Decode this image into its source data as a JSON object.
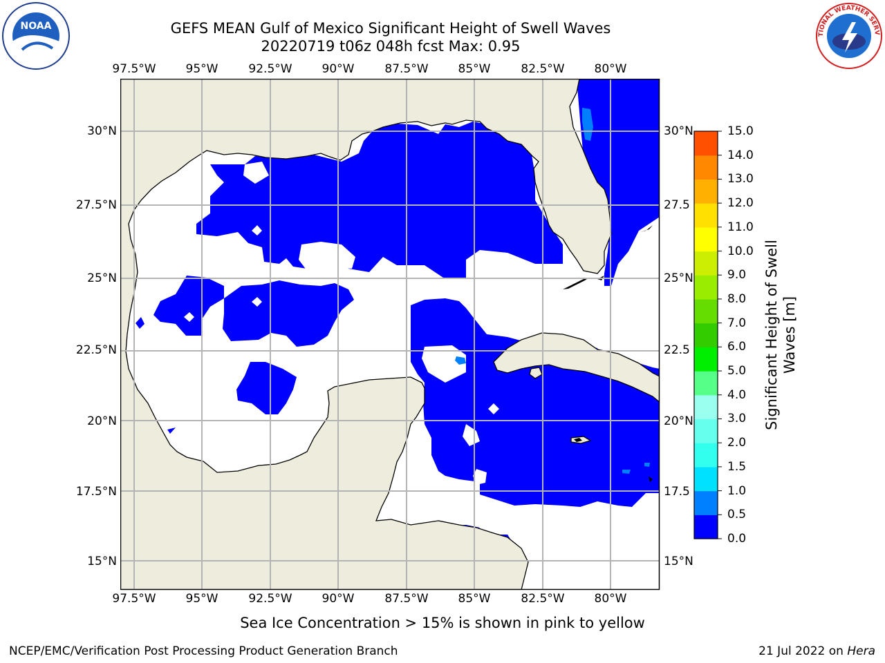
{
  "title": {
    "line1": "GEFS MEAN Gulf of Mexico Significant Height of Swell Waves",
    "line2": "20220719 t06z 048h fcst   Max: 0.95"
  },
  "logos": {
    "left": {
      "icon": "noaa-logo",
      "text": "NOAA"
    },
    "right": {
      "icon": "nws-logo",
      "text": "NATIONAL WEATHER SERVICE"
    }
  },
  "map": {
    "x_ticks": [
      "97.5°W",
      "95°W",
      "92.5°W",
      "90°W",
      "87.5°W",
      "85°W",
      "82.5°W",
      "80°W"
    ],
    "y_ticks_left": [
      "30°N",
      "27.5°N",
      "25°N",
      "22.5°N",
      "20°N",
      "17.5°N",
      "15°N"
    ],
    "y_ticks_right": [
      "30°N",
      "27.5",
      "25°N",
      "22.5",
      "20°N",
      "17.5",
      "15°N"
    ],
    "lon_range": [
      -98,
      -78.2
    ],
    "lat_range": [
      14.0,
      31.8
    ],
    "colors": {
      "land": "#eeecdc",
      "ocean_low": "#0000ff",
      "ocean_mid": "#0080ff",
      "grid": "#b4b4b4"
    }
  },
  "colorbar": {
    "ticks": [
      "15.0",
      "14.0",
      "13.0",
      "12.0",
      "11.0",
      "10.0",
      "9.0",
      "8.0",
      "7.0",
      "6.0",
      "5.0",
      "4.0",
      "3.0",
      "2.0",
      "1.5",
      "1.0",
      "0.5",
      "0.0"
    ],
    "colors": [
      "#0000ff",
      "#0080ff",
      "#00e0ff",
      "#33ffee",
      "#66ffee",
      "#99ffee",
      "#55ff88",
      "#00ee00",
      "#33cc00",
      "#66dd00",
      "#99ee00",
      "#ccee00",
      "#ffff00",
      "#ffe000",
      "#ffb000",
      "#ff8800",
      "#ff5000",
      "#ff2000",
      "#ff0000"
    ],
    "label": "Significant Height of Swell Waves [m]"
  },
  "note": "Sea Ice Concentration > 15% is shown in pink to yellow",
  "footer": {
    "left": "NCEP/EMC/Verification Post Processing Product Generation Branch",
    "right_date": "21 Jul 2022 on",
    "right_host": "Hera"
  }
}
